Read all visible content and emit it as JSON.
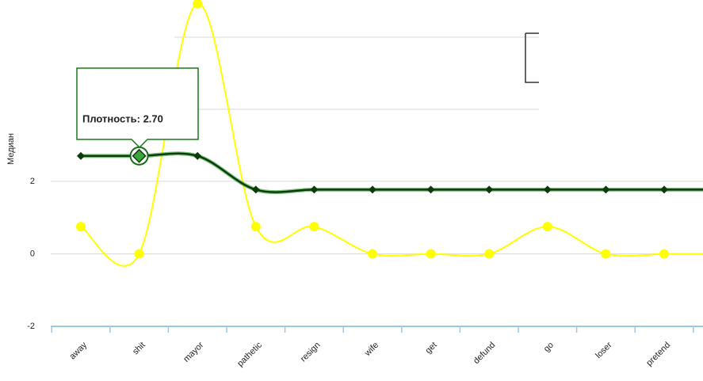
{
  "chart_data": {
    "type": "line",
    "y_label": "Медиан",
    "tooltip": "Плотность: 2.70",
    "categories": [
      "away",
      "shit",
      "mayor",
      "pathetic",
      "resign",
      "wife",
      "get",
      "defund",
      "go",
      "loser",
      "pretend"
    ],
    "series": [
      {
        "color": "#ffff00",
        "values": [
          0.75,
          0,
          6.9,
          0.75,
          0.75,
          0,
          0,
          0,
          0.75,
          0,
          0
        ]
      },
      {
        "color": "#0a3d0a",
        "values": [
          2.7,
          2.7,
          2.7,
          1.77,
          1.77,
          1.77,
          1.77,
          1.77,
          1.77,
          1.77,
          1.77
        ]
      }
    ],
    "ylim": [
      -2,
      7
    ],
    "yticks": [
      -2,
      0,
      2
    ],
    "grid": true
  }
}
